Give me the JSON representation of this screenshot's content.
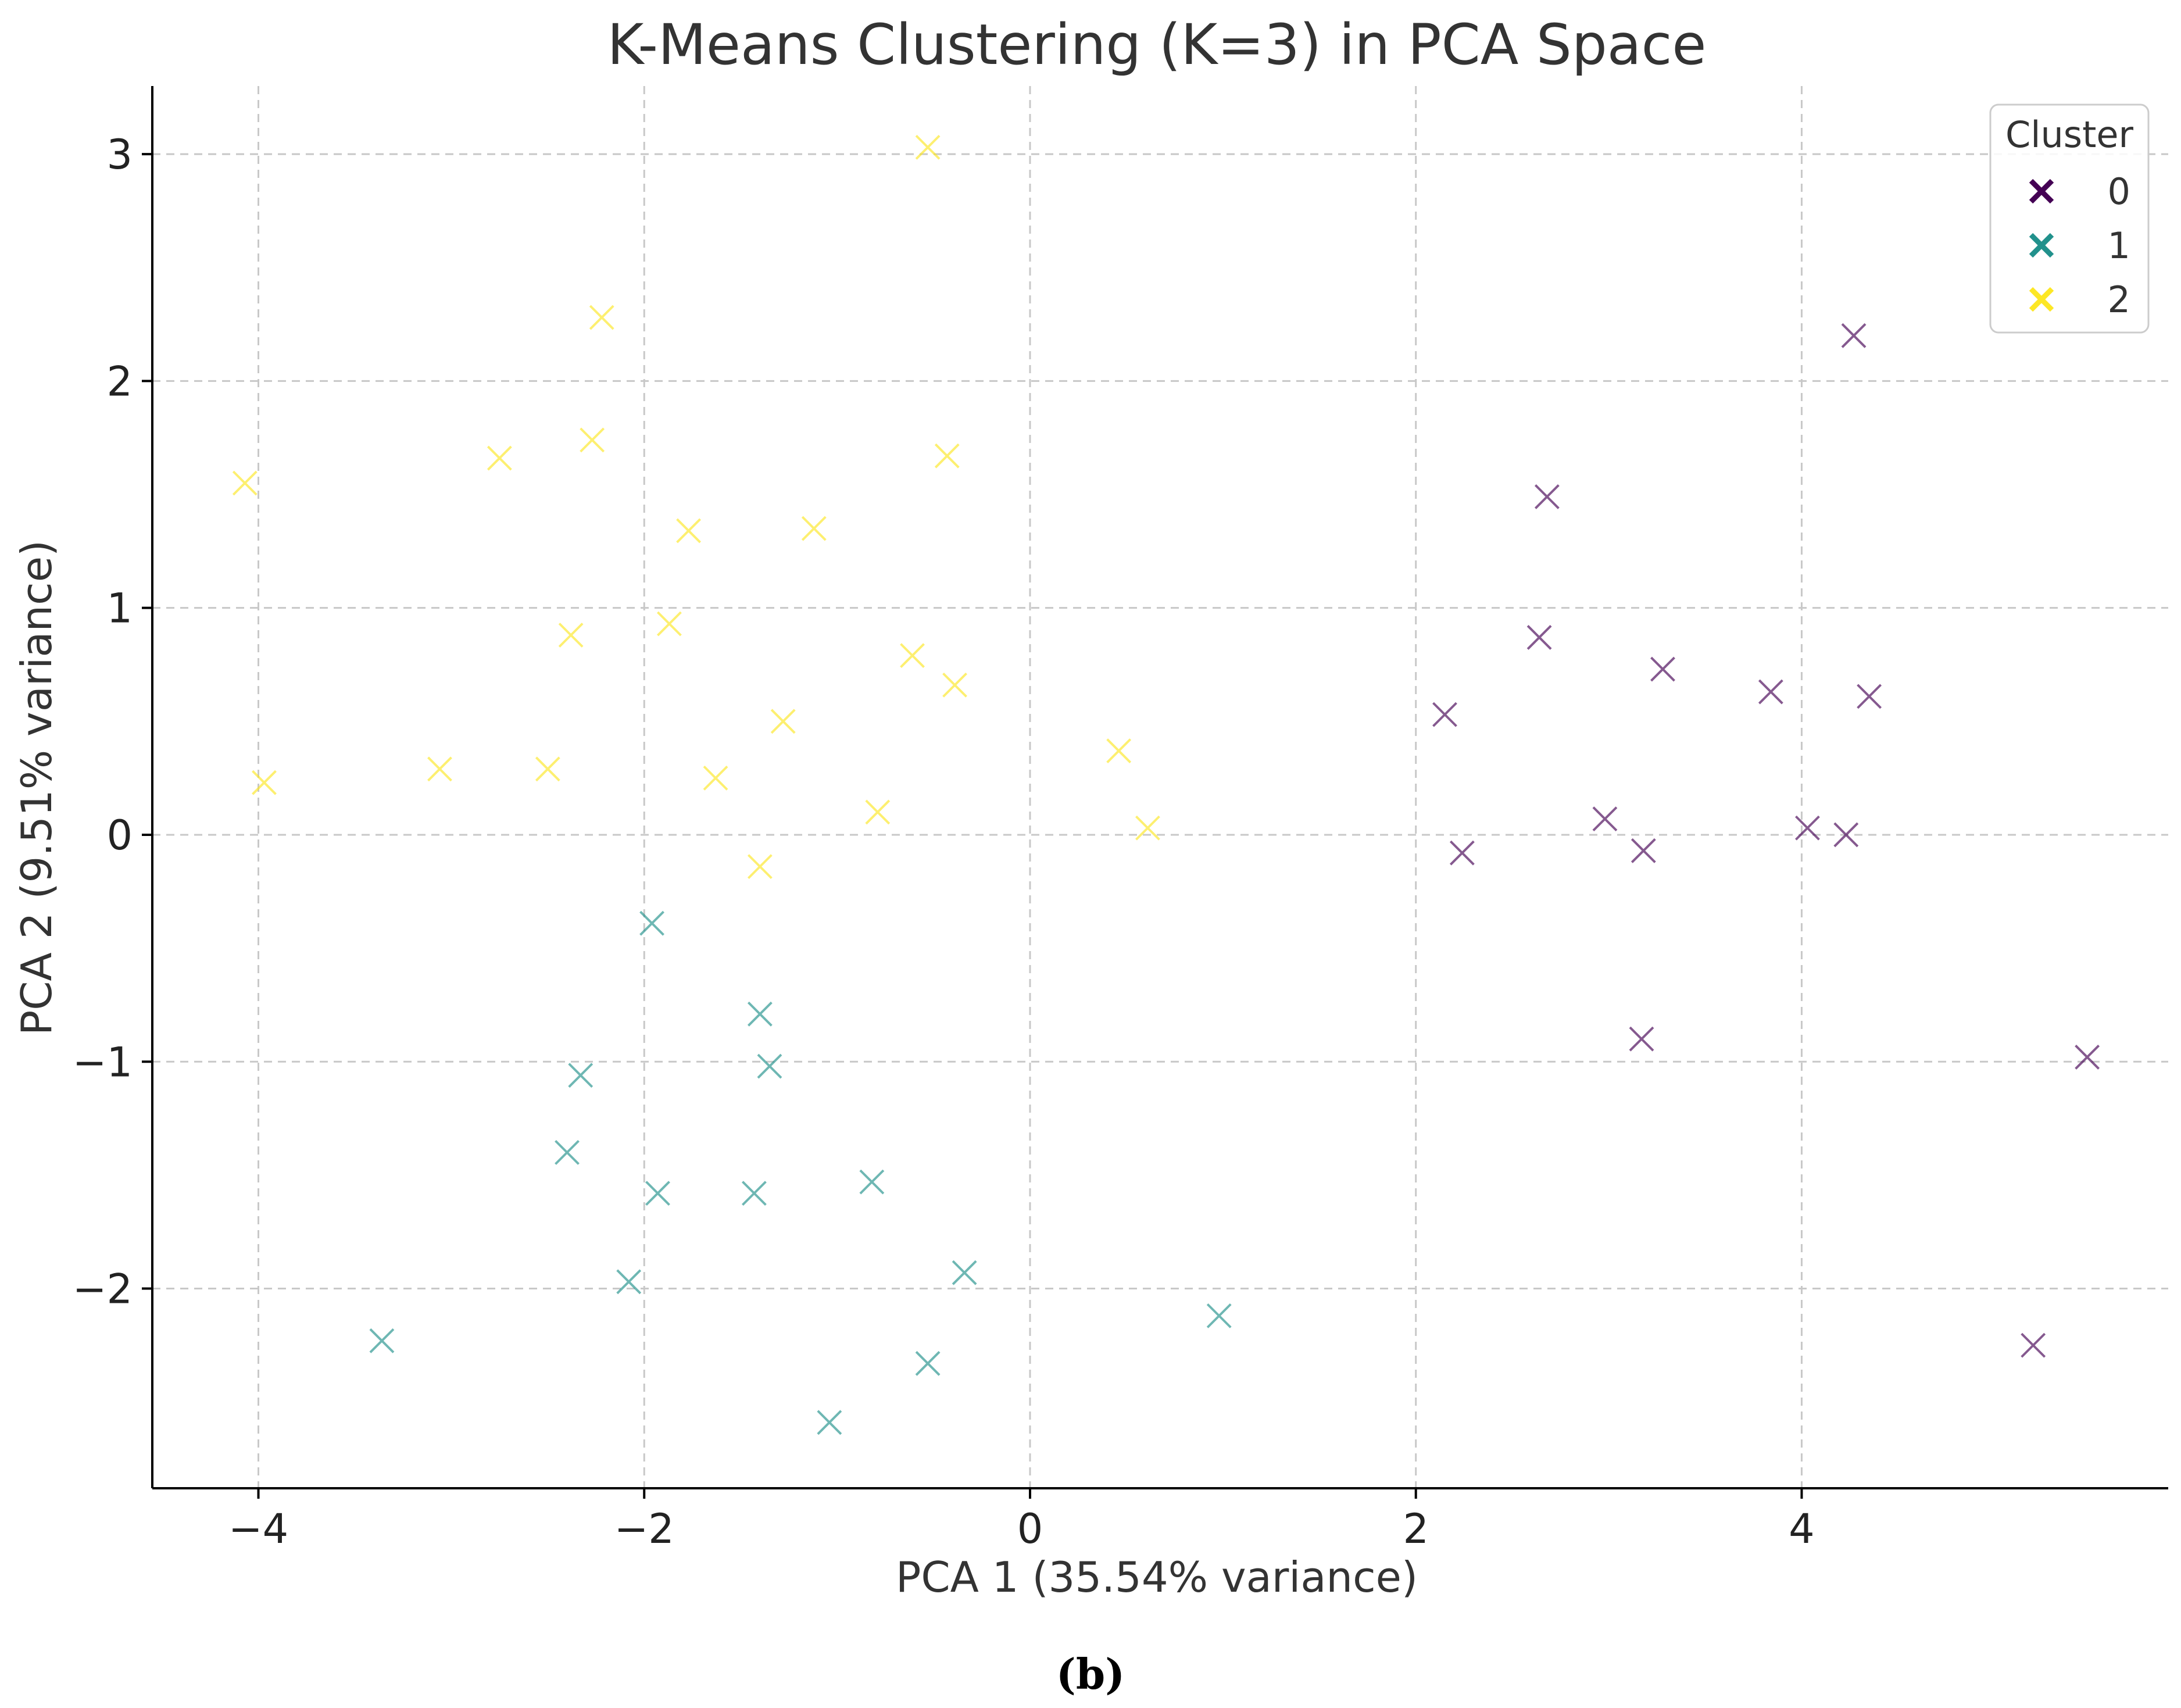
{
  "chart_data": {
    "type": "scatter",
    "title": "K-Means Clustering (K=3) in PCA Space",
    "xlabel": "PCA 1 (35.54% variance)",
    "ylabel": "PCA 2 (9.51% variance)",
    "xlim": [
      -4.55,
      5.9
    ],
    "ylim": [
      -2.88,
      3.3
    ],
    "xticks": [
      -4,
      -2,
      0,
      2,
      4
    ],
    "yticks": [
      -2,
      -1,
      0,
      1,
      2,
      3
    ],
    "xtick_labels": [
      "−4",
      "−2",
      "0",
      "2",
      "4"
    ],
    "ytick_labels": [
      "−2",
      "−1",
      "0",
      "1",
      "2",
      "3"
    ],
    "grid": true,
    "marker": "x",
    "legend": {
      "title": "Cluster",
      "placement": "top-right",
      "entries": [
        {
          "label": "0",
          "color": "#440154"
        },
        {
          "label": "1",
          "color": "#21918c"
        },
        {
          "label": "2",
          "color": "#fde725"
        }
      ]
    },
    "series": [
      {
        "name": "0",
        "color": "#440154",
        "points": [
          [
            4.27,
            2.2
          ],
          [
            2.68,
            1.49
          ],
          [
            2.64,
            0.87
          ],
          [
            3.28,
            0.73
          ],
          [
            3.84,
            0.63
          ],
          [
            4.35,
            0.61
          ],
          [
            2.15,
            0.53
          ],
          [
            2.98,
            0.07
          ],
          [
            4.03,
            0.03
          ],
          [
            4.23,
            0.0
          ],
          [
            3.18,
            -0.07
          ],
          [
            2.24,
            -0.08
          ],
          [
            3.17,
            -0.9
          ],
          [
            5.48,
            -0.98
          ],
          [
            5.2,
            -2.25
          ]
        ]
      },
      {
        "name": "1",
        "color": "#21918c",
        "points": [
          [
            -1.96,
            -0.39
          ],
          [
            -1.4,
            -0.79
          ],
          [
            -1.35,
            -1.02
          ],
          [
            -2.33,
            -1.06
          ],
          [
            -2.4,
            -1.4
          ],
          [
            -1.93,
            -1.58
          ],
          [
            -1.43,
            -1.58
          ],
          [
            -0.82,
            -1.53
          ],
          [
            -2.08,
            -1.97
          ],
          [
            -0.34,
            -1.93
          ],
          [
            0.98,
            -2.12
          ],
          [
            -3.36,
            -2.23
          ],
          [
            -0.53,
            -2.33
          ],
          [
            -1.04,
            -2.59
          ]
        ]
      },
      {
        "name": "2",
        "color": "#fde725",
        "points": [
          [
            -0.53,
            3.03
          ],
          [
            -2.22,
            2.28
          ],
          [
            -2.27,
            1.74
          ],
          [
            -2.75,
            1.66
          ],
          [
            -0.43,
            1.67
          ],
          [
            -4.07,
            1.55
          ],
          [
            -1.77,
            1.34
          ],
          [
            -1.12,
            1.35
          ],
          [
            -1.87,
            0.93
          ],
          [
            -2.38,
            0.88
          ],
          [
            -0.61,
            0.79
          ],
          [
            -0.39,
            0.66
          ],
          [
            -1.28,
            0.5
          ],
          [
            0.46,
            0.37
          ],
          [
            -3.06,
            0.29
          ],
          [
            -2.5,
            0.29
          ],
          [
            -1.63,
            0.25
          ],
          [
            -3.97,
            0.23
          ],
          [
            -0.79,
            0.1
          ],
          [
            0.61,
            0.03
          ],
          [
            -1.4,
            -0.14
          ]
        ]
      }
    ]
  },
  "caption": "(b)"
}
